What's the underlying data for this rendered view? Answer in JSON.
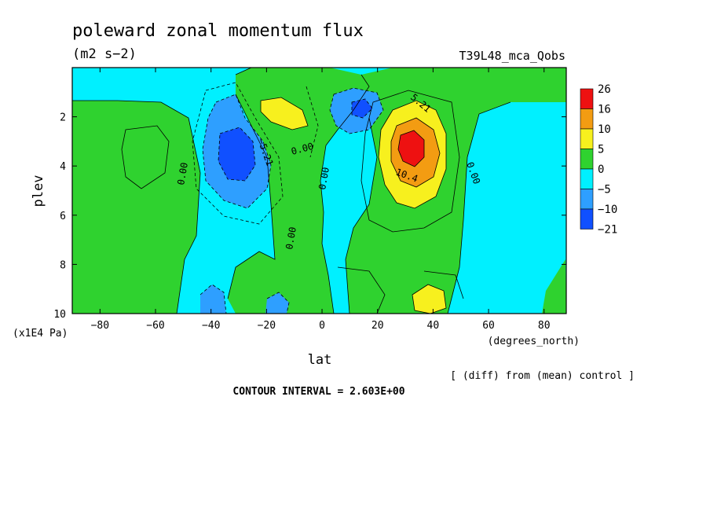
{
  "chart_data": {
    "type": "heatmap",
    "title": "poleward zonal momentum flux",
    "units": "(m2 s−2)",
    "run_label": "T39L48_mca_Qobs",
    "xlabel": "lat",
    "xunits": "(degrees_north)",
    "ylabel": "plev",
    "yunits": "(x1E4 Pa)",
    "xlim": [
      -90,
      88
    ],
    "ylim": [
      10,
      0
    ],
    "x_ticks": [
      "−80",
      "−60",
      "−40",
      "−20",
      "0",
      "20",
      "40",
      "60",
      "80"
    ],
    "x_tick_values": [
      -80,
      -60,
      -40,
      -20,
      0,
      20,
      40,
      60,
      80
    ],
    "y_ticks": [
      "2",
      "4",
      "6",
      "8",
      "10"
    ],
    "y_tick_values": [
      2,
      4,
      6,
      8,
      10
    ],
    "colorbar": {
      "labels": [
        "26",
        "16",
        "10",
        "5",
        "0",
        "−5",
        "−10",
        "−21"
      ],
      "colors": [
        "#ee1111",
        "#f39c12",
        "#f7f01e",
        "#2fd22f",
        "#00f0ff",
        "#2e9fff",
        "#1050ff"
      ]
    },
    "contour_labels": [
      "0.00",
      "0.00",
      "0.00",
      "0.00",
      "0.00",
      "−5.21",
      "5.21",
      "10.4"
    ],
    "note": "[ (diff) from (mean) control ]",
    "contour_interval": "CONTOUR INTERVAL = 2.603E+00",
    "fields": [
      {
        "x": -32,
        "y": 3.6,
        "value": -13
      },
      {
        "x": 15,
        "y": 1.8,
        "value": -9
      },
      {
        "x": 31,
        "y": 3.3,
        "value": 20
      },
      {
        "x": -10,
        "y": 1.8,
        "value": 6
      },
      {
        "x": 33,
        "y": 9.5,
        "value": 5
      },
      {
        "x": -38,
        "y": 9.2,
        "value": -6
      },
      {
        "x": -15,
        "y": 9.4,
        "value": -6
      },
      {
        "x": 65,
        "y": 5.0,
        "value": -3
      },
      {
        "x": -70,
        "y": 4.0,
        "value": 2
      }
    ]
  }
}
